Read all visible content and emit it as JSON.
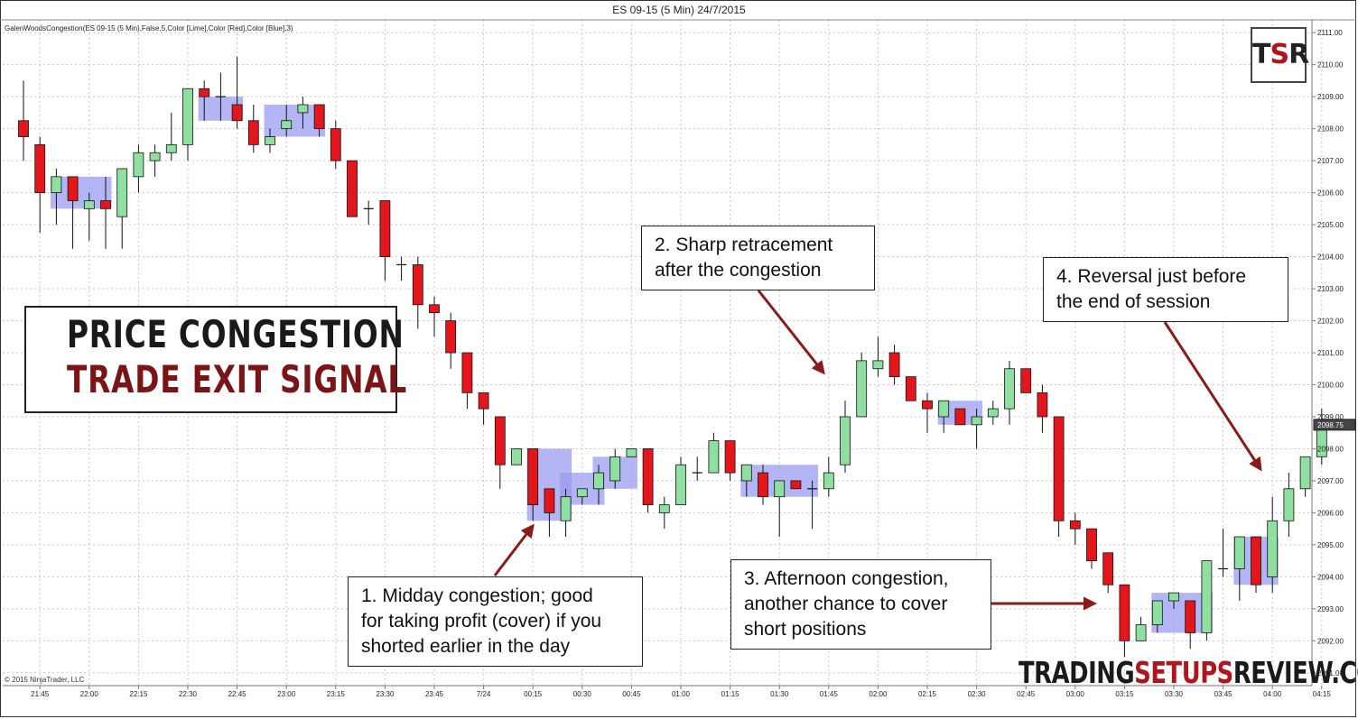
{
  "window_title": "ES 09-15 (5 Min)  24/7/2015",
  "indicator_label": "GalenWoodsCongestion(ES 09-15 (5 Min),False,5,Color [Lime],Color [Red],Color [Blue],3)",
  "copyright": "© 2015 NinjaTrader, LLC",
  "logo": {
    "t": "T",
    "s": "S",
    "r": "R"
  },
  "headline": {
    "line1": "PRICE CONGESTION",
    "line2": "TRADE EXIT SIGNAL"
  },
  "notes": {
    "note1": [
      "1. Midday congestion; good",
      "for taking profit (cover) if you",
      "shorted earlier in the day"
    ],
    "note2": [
      "2. Sharp retracement",
      "after the congestion"
    ],
    "note3": [
      "3. Afternoon congestion,",
      "another chance to cover",
      "short positions"
    ],
    "note4": [
      "4. Reversal just before",
      "the end of session"
    ]
  },
  "footer_brand": {
    "part1": "TRADING",
    "part2": "SETUPS",
    "part3": "REVIEW.COM"
  },
  "colors": {
    "up": "#8fe0a0",
    "down": "#e3161c",
    "congestion": "#9a9cf0",
    "arrow": "#8b1a1a"
  },
  "chart_data": {
    "type": "candlestick",
    "title": "ES 09-15 (5 Min)  24/7/2015",
    "ylim": [
      2090.6,
      2111.4
    ],
    "y_ticks": [
      "2091.00",
      "2092.00",
      "2093.00",
      "2094.00",
      "2095.00",
      "2096.00",
      "2097.00",
      "2098.00",
      "2099.00",
      "2100.00",
      "2101.00",
      "2102.00",
      "2103.00",
      "2104.00",
      "2105.00",
      "2106.00",
      "2107.00",
      "2108.00",
      "2109.00",
      "2110.00",
      "2111.00"
    ],
    "x_ticks": [
      "21:45",
      "22:00",
      "22:15",
      "22:30",
      "22:45",
      "23:00",
      "23:15",
      "23:30",
      "23:45",
      "7/24",
      "00:15",
      "00:30",
      "00:45",
      "01:00",
      "01:15",
      "01:30",
      "01:45",
      "02:00",
      "02:15",
      "02:30",
      "02:45",
      "03:00",
      "03:15",
      "03:30",
      "03:45",
      "04:00",
      "04:15"
    ],
    "last_price": "2098.75",
    "candles": [
      {
        "o": 2108.25,
        "h": 2109.5,
        "l": 2107.0,
        "c": 2107.75
      },
      {
        "o": 2107.5,
        "h": 2107.75,
        "l": 2104.75,
        "c": 2106.0
      },
      {
        "o": 2106.0,
        "h": 2106.75,
        "l": 2105.0,
        "c": 2106.5
      },
      {
        "o": 2106.5,
        "h": 2106.5,
        "l": 2104.25,
        "c": 2105.75
      },
      {
        "o": 2105.5,
        "h": 2106.0,
        "l": 2104.5,
        "c": 2105.75
      },
      {
        "o": 2105.75,
        "h": 2106.5,
        "l": 2104.25,
        "c": 2105.5
      },
      {
        "o": 2105.25,
        "h": 2106.75,
        "l": 2104.25,
        "c": 2106.75
      },
      {
        "o": 2106.5,
        "h": 2107.5,
        "l": 2106.0,
        "c": 2107.25
      },
      {
        "o": 2107.0,
        "h": 2107.5,
        "l": 2106.5,
        "c": 2107.25
      },
      {
        "o": 2107.25,
        "h": 2108.5,
        "l": 2107.0,
        "c": 2107.5
      },
      {
        "o": 2107.5,
        "h": 2109.25,
        "l": 2107.0,
        "c": 2109.25
      },
      {
        "o": 2109.25,
        "h": 2109.5,
        "l": 2108.25,
        "c": 2109.0
      },
      {
        "o": 2109.0,
        "h": 2109.75,
        "l": 2108.25,
        "c": 2109.0
      },
      {
        "o": 2108.75,
        "h": 2110.25,
        "l": 2108.0,
        "c": 2108.25
      },
      {
        "o": 2108.25,
        "h": 2108.75,
        "l": 2107.25,
        "c": 2107.5
      },
      {
        "o": 2107.5,
        "h": 2108.0,
        "l": 2107.25,
        "c": 2107.75
      },
      {
        "o": 2108.0,
        "h": 2108.75,
        "l": 2107.75,
        "c": 2108.25
      },
      {
        "o": 2108.5,
        "h": 2109.0,
        "l": 2108.0,
        "c": 2108.75
      },
      {
        "o": 2108.75,
        "h": 2108.75,
        "l": 2107.75,
        "c": 2108.0
      },
      {
        "o": 2108.0,
        "h": 2108.25,
        "l": 2106.75,
        "c": 2107.0
      },
      {
        "o": 2107.0,
        "h": 2107.0,
        "l": 2105.25,
        "c": 2105.25
      },
      {
        "o": 2105.5,
        "h": 2105.75,
        "l": 2105.0,
        "c": 2105.5
      },
      {
        "o": 2105.75,
        "h": 2105.75,
        "l": 2103.25,
        "c": 2104.0
      },
      {
        "o": 2103.75,
        "h": 2104.0,
        "l": 2103.25,
        "c": 2103.75
      },
      {
        "o": 2103.75,
        "h": 2104.0,
        "l": 2101.75,
        "c": 2102.5
      },
      {
        "o": 2102.5,
        "h": 2102.75,
        "l": 2101.5,
        "c": 2102.25
      },
      {
        "o": 2102.0,
        "h": 2102.25,
        "l": 2100.5,
        "c": 2101.0
      },
      {
        "o": 2101.0,
        "h": 2101.0,
        "l": 2099.25,
        "c": 2099.75
      },
      {
        "o": 2099.75,
        "h": 2099.75,
        "l": 2098.75,
        "c": 2099.25
      },
      {
        "o": 2099.0,
        "h": 2099.0,
        "l": 2096.75,
        "c": 2097.5
      },
      {
        "o": 2097.5,
        "h": 2098.0,
        "l": 2097.5,
        "c": 2098.0
      },
      {
        "o": 2098.0,
        "h": 2098.0,
        "l": 2095.75,
        "c": 2096.25
      },
      {
        "o": 2096.75,
        "h": 2096.75,
        "l": 2095.25,
        "c": 2096.0
      },
      {
        "o": 2095.75,
        "h": 2096.75,
        "l": 2095.25,
        "c": 2096.5
      },
      {
        "o": 2096.5,
        "h": 2096.75,
        "l": 2096.25,
        "c": 2096.75
      },
      {
        "o": 2096.75,
        "h": 2097.5,
        "l": 2096.25,
        "c": 2097.25
      },
      {
        "o": 2097.0,
        "h": 2098.0,
        "l": 2096.75,
        "c": 2097.75
      },
      {
        "o": 2097.75,
        "h": 2098.0,
        "l": 2097.75,
        "c": 2098.0
      },
      {
        "o": 2098.0,
        "h": 2098.0,
        "l": 2096.0,
        "c": 2096.25
      },
      {
        "o": 2096.0,
        "h": 2096.5,
        "l": 2095.5,
        "c": 2096.25
      },
      {
        "o": 2096.25,
        "h": 2097.75,
        "l": 2096.25,
        "c": 2097.5
      },
      {
        "o": 2097.25,
        "h": 2097.75,
        "l": 2097.0,
        "c": 2097.25
      },
      {
        "o": 2097.25,
        "h": 2098.5,
        "l": 2097.25,
        "c": 2098.25
      },
      {
        "o": 2098.25,
        "h": 2098.25,
        "l": 2097.0,
        "c": 2097.25
      },
      {
        "o": 2097.0,
        "h": 2097.5,
        "l": 2096.5,
        "c": 2097.5
      },
      {
        "o": 2097.25,
        "h": 2097.5,
        "l": 2096.25,
        "c": 2096.5
      },
      {
        "o": 2096.5,
        "h": 2097.0,
        "l": 2095.25,
        "c": 2097.0
      },
      {
        "o": 2097.0,
        "h": 2097.0,
        "l": 2096.75,
        "c": 2096.75
      },
      {
        "o": 2096.75,
        "h": 2097.0,
        "l": 2095.5,
        "c": 2096.75
      },
      {
        "o": 2096.75,
        "h": 2097.75,
        "l": 2096.5,
        "c": 2097.25
      },
      {
        "o": 2097.5,
        "h": 2099.5,
        "l": 2097.25,
        "c": 2099.0
      },
      {
        "o": 2099.0,
        "h": 2101.0,
        "l": 2099.0,
        "c": 2100.75
      },
      {
        "o": 2100.5,
        "h": 2101.5,
        "l": 2100.25,
        "c": 2100.75
      },
      {
        "o": 2101.0,
        "h": 2101.25,
        "l": 2100.0,
        "c": 2100.25
      },
      {
        "o": 2100.25,
        "h": 2100.25,
        "l": 2099.5,
        "c": 2099.5
      },
      {
        "o": 2099.5,
        "h": 2099.75,
        "l": 2098.5,
        "c": 2099.25
      },
      {
        "o": 2099.0,
        "h": 2099.5,
        "l": 2098.5,
        "c": 2099.5
      },
      {
        "o": 2099.25,
        "h": 2099.25,
        "l": 2098.75,
        "c": 2098.75
      },
      {
        "o": 2098.75,
        "h": 2099.25,
        "l": 2098.0,
        "c": 2099.0
      },
      {
        "o": 2099.0,
        "h": 2099.5,
        "l": 2098.75,
        "c": 2099.25
      },
      {
        "o": 2099.25,
        "h": 2100.75,
        "l": 2098.75,
        "c": 2100.5
      },
      {
        "o": 2100.5,
        "h": 2100.5,
        "l": 2099.75,
        "c": 2099.75
      },
      {
        "o": 2099.75,
        "h": 2100.0,
        "l": 2098.5,
        "c": 2099.0
      },
      {
        "o": 2099.0,
        "h": 2099.0,
        "l": 2095.25,
        "c": 2095.75
      },
      {
        "o": 2095.75,
        "h": 2096.0,
        "l": 2095.0,
        "c": 2095.5
      },
      {
        "o": 2095.5,
        "h": 2095.5,
        "l": 2094.25,
        "c": 2094.5
      },
      {
        "o": 2094.75,
        "h": 2094.75,
        "l": 2093.5,
        "c": 2093.75
      },
      {
        "o": 2093.75,
        "h": 2093.75,
        "l": 2091.5,
        "c": 2092.0
      },
      {
        "o": 2092.0,
        "h": 2092.75,
        "l": 2092.0,
        "c": 2092.5
      },
      {
        "o": 2092.5,
        "h": 2093.25,
        "l": 2092.25,
        "c": 2093.25
      },
      {
        "o": 2093.25,
        "h": 2093.5,
        "l": 2093.0,
        "c": 2093.5
      },
      {
        "o": 2093.25,
        "h": 2093.25,
        "l": 2091.75,
        "c": 2092.25
      },
      {
        "o": 2092.25,
        "h": 2094.5,
        "l": 2092.0,
        "c": 2094.5
      },
      {
        "o": 2094.25,
        "h": 2095.5,
        "l": 2094.0,
        "c": 2094.25
      },
      {
        "o": 2094.25,
        "h": 2095.25,
        "l": 2093.25,
        "c": 2095.25
      },
      {
        "o": 2095.25,
        "h": 2095.25,
        "l": 2093.5,
        "c": 2093.75
      },
      {
        "o": 2094.0,
        "h": 2096.5,
        "l": 2093.5,
        "c": 2095.75
      },
      {
        "o": 2095.75,
        "h": 2097.25,
        "l": 2095.25,
        "c": 2096.75
      },
      {
        "o": 2096.75,
        "h": 2097.75,
        "l": 2096.5,
        "c": 2097.75
      },
      {
        "o": 2097.75,
        "h": 2099.25,
        "l": 2097.5,
        "c": 2098.75
      }
    ],
    "congestion_zones": [
      {
        "start": 2,
        "end": 5,
        "low": 2105.5,
        "high": 2106.5
      },
      {
        "start": 11,
        "end": 13,
        "low": 2108.25,
        "high": 2109.0
      },
      {
        "start": 15,
        "end": 18,
        "low": 2107.75,
        "high": 2108.75
      },
      {
        "start": 31,
        "end": 33,
        "low": 2095.75,
        "high": 2098.0
      },
      {
        "start": 33,
        "end": 35,
        "low": 2096.25,
        "high": 2097.25
      },
      {
        "start": 35,
        "end": 37,
        "low": 2096.75,
        "high": 2097.75
      },
      {
        "start": 44,
        "end": 48,
        "low": 2096.5,
        "high": 2097.5
      },
      {
        "start": 56,
        "end": 58,
        "low": 2098.75,
        "high": 2099.5
      },
      {
        "start": 69,
        "end": 72,
        "low": 2092.25,
        "high": 2093.5
      },
      {
        "start": 74,
        "end": 76,
        "low": 2093.75,
        "high": 2095.25
      }
    ]
  }
}
